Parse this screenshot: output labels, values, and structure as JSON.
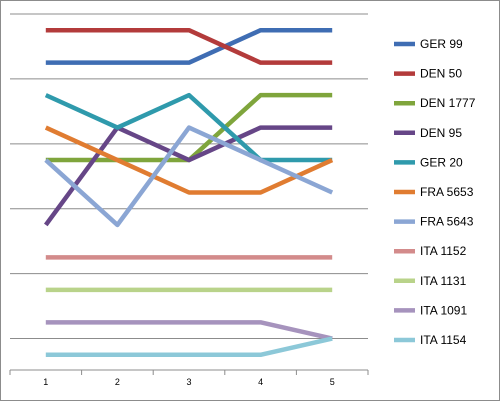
{
  "chart_data": {
    "type": "line",
    "title": "",
    "xlabel": "",
    "ylabel": "",
    "categories": [
      "1",
      "2",
      "3",
      "4",
      "5"
    ],
    "ylim": [
      0.5,
      11.5
    ],
    "y_axis_inverted": true,
    "y_tick_labels_shown": false,
    "grid": "horizontal",
    "legend_position": "right",
    "series": [
      {
        "name": "GER 99",
        "color": "#3f6db3",
        "values": [
          2,
          2,
          2,
          1,
          1
        ]
      },
      {
        "name": "DEN 50",
        "color": "#b33b3b",
        "values": [
          1,
          1,
          1,
          2,
          2
        ]
      },
      {
        "name": "DEN 1777",
        "color": "#7fa53c",
        "values": [
          5,
          5,
          5,
          3,
          3
        ]
      },
      {
        "name": "DEN 95",
        "color": "#664687",
        "values": [
          7,
          4,
          5,
          4,
          4
        ]
      },
      {
        "name": "GER 20",
        "color": "#2f9aac",
        "values": [
          3,
          4,
          3,
          5,
          5
        ]
      },
      {
        "name": "FRA 5653",
        "color": "#e07c31",
        "values": [
          4,
          5,
          6,
          6,
          5
        ]
      },
      {
        "name": "FRA 5643",
        "color": "#8ba6d4",
        "values": [
          5,
          7,
          4,
          5,
          6
        ]
      },
      {
        "name": "ITA 1152",
        "color": "#d38b8b",
        "values": [
          8,
          8,
          8,
          8,
          8
        ]
      },
      {
        "name": "ITA 1131",
        "color": "#b9d38a",
        "values": [
          9,
          9,
          9,
          9,
          9
        ]
      },
      {
        "name": "ITA 1091",
        "color": "#a693bd",
        "values": [
          10,
          10,
          10,
          10,
          10.5
        ]
      },
      {
        "name": "ITA 1154",
        "color": "#8cc8d8",
        "values": [
          11,
          11,
          11,
          11,
          10.5
        ]
      }
    ]
  }
}
